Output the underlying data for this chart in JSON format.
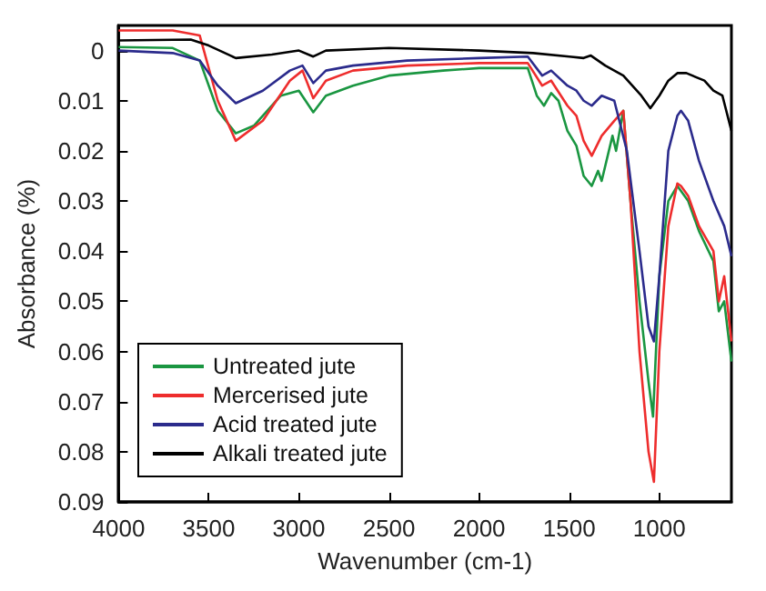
{
  "chart_data": {
    "type": "line",
    "xlabel": "Wavenumber (cm-1)",
    "ylabel": "Absorbance (%)",
    "xlim": [
      4000,
      600
    ],
    "xticks": [
      4000,
      3500,
      3000,
      2500,
      2000,
      1500,
      1000
    ],
    "ylim": [
      0.09,
      -0.005
    ],
    "yticks": [
      0,
      0.01,
      0.02,
      0.03,
      0.04,
      0.05,
      0.06,
      0.07,
      0.08,
      0.09
    ],
    "grid": false,
    "legend": "bottom left",
    "marker": "none",
    "line_style": "solid",
    "series": [
      {
        "name": "Untreated jute",
        "color": "#1a9641",
        "x": [
          4000,
          3700,
          3550,
          3450,
          3350,
          3250,
          3100,
          3000,
          2920,
          2850,
          2700,
          2500,
          2200,
          2000,
          1800,
          1730,
          1680,
          1640,
          1600,
          1560,
          1510,
          1460,
          1420,
          1375,
          1340,
          1320,
          1260,
          1240,
          1200,
          1160,
          1110,
          1060,
          1035,
          1000,
          950,
          900,
          880,
          840,
          780,
          700,
          670,
          640,
          600
        ],
        "values": [
          -0.0007,
          -0.0005,
          0.002,
          0.012,
          0.0165,
          0.015,
          0.009,
          0.008,
          0.0123,
          0.009,
          0.007,
          0.005,
          0.004,
          0.0035,
          0.0035,
          0.0035,
          0.009,
          0.011,
          0.0085,
          0.01,
          0.016,
          0.019,
          0.025,
          0.027,
          0.024,
          0.026,
          0.017,
          0.02,
          0.012,
          0.03,
          0.05,
          0.066,
          0.073,
          0.045,
          0.03,
          0.027,
          0.028,
          0.03,
          0.036,
          0.042,
          0.052,
          0.05,
          0.062
        ]
      },
      {
        "name": "Mercerised jute",
        "color": "#ee2d2d",
        "x": [
          4000,
          3700,
          3550,
          3450,
          3350,
          3200,
          3050,
          2980,
          2920,
          2850,
          2700,
          2400,
          2000,
          1730,
          1650,
          1600,
          1510,
          1460,
          1420,
          1375,
          1320,
          1250,
          1200,
          1160,
          1110,
          1060,
          1030,
          1000,
          950,
          900,
          880,
          840,
          780,
          700,
          670,
          640,
          600
        ],
        "values": [
          -0.004,
          -0.004,
          -0.003,
          0.01,
          0.018,
          0.014,
          0.006,
          0.004,
          0.0095,
          0.006,
          0.004,
          0.003,
          0.0025,
          0.0025,
          0.007,
          0.006,
          0.011,
          0.013,
          0.018,
          0.021,
          0.017,
          0.014,
          0.012,
          0.03,
          0.06,
          0.08,
          0.086,
          0.06,
          0.035,
          0.0265,
          0.027,
          0.029,
          0.035,
          0.04,
          0.05,
          0.045,
          0.058
        ]
      },
      {
        "name": "Acid treated jute",
        "color": "#2b2b8c",
        "x": [
          4000,
          3700,
          3550,
          3450,
          3350,
          3200,
          3050,
          2980,
          2920,
          2850,
          2700,
          2400,
          2000,
          1730,
          1650,
          1600,
          1510,
          1460,
          1420,
          1375,
          1320,
          1250,
          1180,
          1110,
          1060,
          1030,
          1000,
          950,
          900,
          880,
          840,
          780,
          700,
          640,
          600
        ],
        "values": [
          0.0,
          0.0005,
          0.002,
          0.007,
          0.0105,
          0.008,
          0.004,
          0.003,
          0.0065,
          0.004,
          0.003,
          0.002,
          0.0015,
          0.0012,
          0.005,
          0.004,
          0.007,
          0.008,
          0.01,
          0.011,
          0.009,
          0.01,
          0.02,
          0.04,
          0.055,
          0.058,
          0.045,
          0.02,
          0.013,
          0.012,
          0.014,
          0.022,
          0.03,
          0.035,
          0.041
        ]
      },
      {
        "name": "Alkali treated jute",
        "color": "#000000",
        "x": [
          4000,
          3600,
          3500,
          3350,
          3150,
          3000,
          2920,
          2850,
          2500,
          2000,
          1700,
          1500,
          1420,
          1380,
          1300,
          1200,
          1100,
          1050,
          1000,
          950,
          900,
          850,
          750,
          700,
          650,
          600
        ],
        "values": [
          -0.002,
          -0.0022,
          -0.001,
          0.0015,
          0.0008,
          0.0,
          0.0012,
          0.0,
          -0.0005,
          0.0,
          0.0005,
          0.0012,
          0.0015,
          0.001,
          0.003,
          0.005,
          0.009,
          0.0115,
          0.009,
          0.006,
          0.0045,
          0.0045,
          0.006,
          0.008,
          0.009,
          0.016
        ]
      }
    ]
  }
}
